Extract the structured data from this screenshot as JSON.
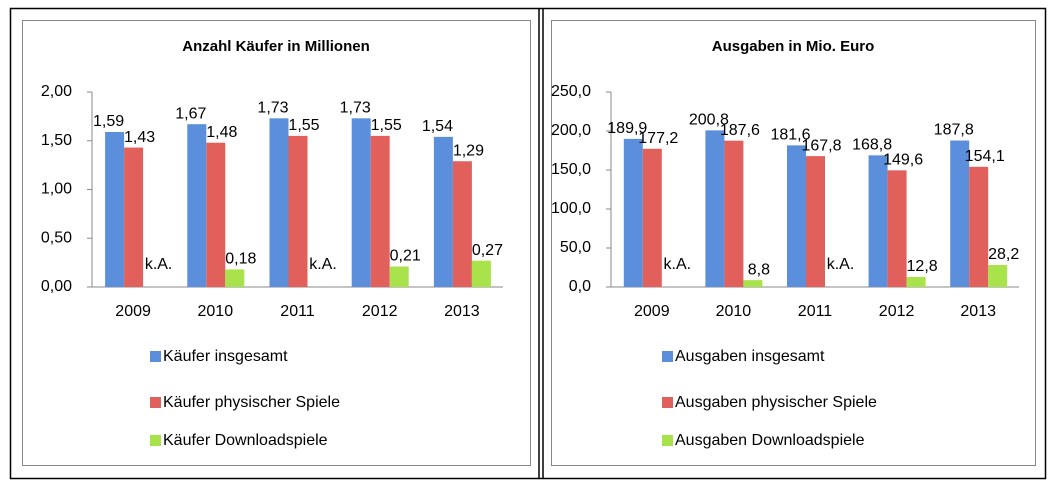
{
  "chart_data": [
    {
      "type": "bar",
      "title": "Anzahl Käufer in Millionen",
      "categories": [
        "2009",
        "2010",
        "2011",
        "2012",
        "2013"
      ],
      "series": [
        {
          "name": "Käufer insgesamt",
          "color": "#5b8fdc",
          "values": [
            1.59,
            1.67,
            1.73,
            1.73,
            1.54
          ],
          "value_labels": [
            "1,59",
            "1,67",
            "1,73",
            "1,73",
            "1,54"
          ]
        },
        {
          "name": "Käufer physischer Spiele",
          "color": "#e2605c",
          "values": [
            1.43,
            1.48,
            1.55,
            1.55,
            1.29
          ],
          "value_labels": [
            "1,43",
            "1,48",
            "1,55",
            "1,55",
            "1,29"
          ]
        },
        {
          "name": "Käufer Downloadspiele",
          "color": "#a9e34b",
          "values": [
            null,
            0.18,
            null,
            0.21,
            0.27
          ],
          "value_labels": [
            "k.A.",
            "0,18",
            "k.A.",
            "0,21",
            "0,27"
          ]
        }
      ],
      "ylim": [
        0,
        2
      ],
      "yticks": [
        {
          "value": 0,
          "label": "0,00"
        },
        {
          "value": 0.5,
          "label": "0,50"
        },
        {
          "value": 1,
          "label": "1,00"
        },
        {
          "value": 1.5,
          "label": "1,50"
        },
        {
          "value": 2,
          "label": "2,00"
        }
      ],
      "grid": false
    },
    {
      "type": "bar",
      "title": "Ausgaben in Mio. Euro",
      "categories": [
        "2009",
        "2010",
        "2011",
        "2012",
        "2013"
      ],
      "series": [
        {
          "name": "Ausgaben insgesamt",
          "color": "#5b8fdc",
          "values": [
            189.9,
            200.8,
            181.6,
            168.8,
            187.8
          ],
          "value_labels": [
            "189,9",
            "200,8",
            "181,6",
            "168,8",
            "187,8"
          ]
        },
        {
          "name": "Ausgaben physischer Spiele",
          "color": "#e2605c",
          "values": [
            177.2,
            187.6,
            167.8,
            149.6,
            154.1
          ],
          "value_labels": [
            "177,2",
            "187,6",
            "167,8",
            "149,6",
            "154,1"
          ]
        },
        {
          "name": "Ausgaben Downloadspiele",
          "color": "#a9e34b",
          "values": [
            null,
            8.8,
            null,
            12.8,
            28.2
          ],
          "value_labels": [
            "k.A.",
            "8,8",
            "k.A.",
            "12,8",
            "28,2"
          ]
        }
      ],
      "ylim": [
        0,
        250
      ],
      "yticks": [
        {
          "value": 0,
          "label": "0,0"
        },
        {
          "value": 50,
          "label": "50,0"
        },
        {
          "value": 100,
          "label": "100,0"
        },
        {
          "value": 150,
          "label": "150,0"
        },
        {
          "value": 200,
          "label": "200,0"
        },
        {
          "value": 250,
          "label": "250,0"
        }
      ],
      "grid": false
    }
  ]
}
